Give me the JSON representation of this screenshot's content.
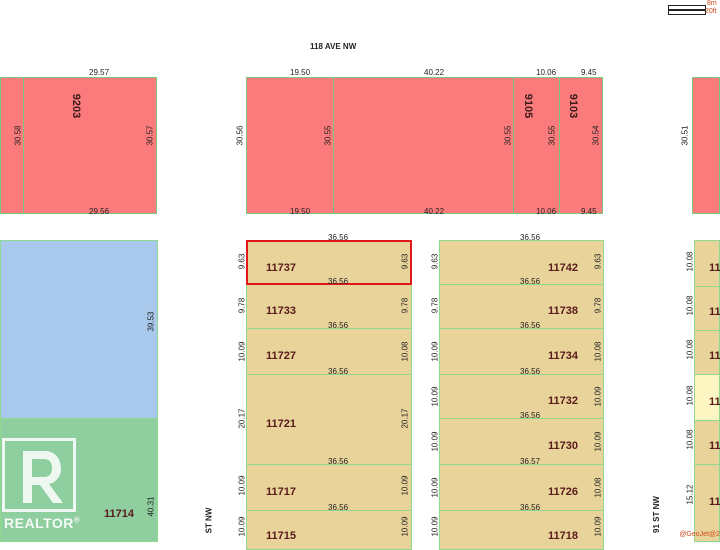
{
  "map": {
    "street_top": "118 AVE NW",
    "street_left": "ST NW",
    "street_right": "91 ST NW",
    "scale": {
      "metric": "8m",
      "imperial": "20ft"
    },
    "credit": "@GeoJet@2",
    "realtor": {
      "label": "REALTOR",
      "reg": "®"
    },
    "top_lots": {
      "left": {
        "number": "9203",
        "top_width": "29.57",
        "bottom_width": "29.56",
        "left_depth": "30.58",
        "right_depth": "30.57"
      },
      "middle_a": {
        "top_width": "19.50",
        "bottom_width": "19.50",
        "left_depth": "30.56",
        "right_depth": "30.55"
      },
      "middle_b": {
        "top_width": "40.22",
        "bottom_width": "40.22",
        "right_depth": "30.55"
      },
      "lot_9105": {
        "number": "9105",
        "top_width": "10.06",
        "bottom_width": "10.06",
        "right_depth": "30.55"
      },
      "lot_9103": {
        "number": "9103",
        "top_width": "9.45",
        "bottom_width": "9.45",
        "right_depth": "30.54"
      },
      "right_edge_depth": "30.51"
    },
    "left_big_lot": {
      "depth_upper": "39.53",
      "depth_lower": "40.31",
      "number": "11714"
    },
    "mid_column": [
      {
        "number": "11737",
        "width_top": "36.56",
        "width_bottom": "36.56",
        "left_depth": "9.63",
        "right_depth": "9.63",
        "selected": true
      },
      {
        "number": "11733",
        "width_bottom": "36.56",
        "left_depth": "9.78",
        "right_depth": "9.78"
      },
      {
        "number": "11727",
        "width_bottom": "36.56",
        "left_depth": "10.09",
        "right_depth": "10.08"
      },
      {
        "number": "11721",
        "width_bottom": "36.56",
        "left_depth": "20.17",
        "right_depth": "20.17"
      },
      {
        "number": "11717",
        "width_bottom": "36.56",
        "left_depth": "10.09",
        "right_depth": "10.09"
      },
      {
        "number": "11715",
        "left_depth": "10.09",
        "right_depth": "10.09"
      }
    ],
    "right_column": [
      {
        "number": "11742",
        "width_top": "36.56",
        "width_bottom": "36.56",
        "left_depth": "9.63",
        "right_depth": "9.63"
      },
      {
        "number": "11738",
        "width_bottom": "36.56",
        "left_depth": "9.78",
        "right_depth": "9.78"
      },
      {
        "number": "11734",
        "width_bottom": "36.56",
        "left_depth": "10.09",
        "right_depth": "10.08"
      },
      {
        "number": "11732",
        "width_bottom": "36.56",
        "left_depth": "10.09",
        "right_depth": "10.09"
      },
      {
        "number": "11730",
        "width_bottom": "36.57",
        "left_depth": "10.09",
        "right_depth": "10.09"
      },
      {
        "number": "11726",
        "width_bottom": "36.56",
        "left_depth": "10.09",
        "right_depth": "10.08"
      },
      {
        "number": "11718",
        "left_depth": "10.09",
        "right_depth": "10.09"
      }
    ],
    "far_right_column": [
      {
        "number": "11",
        "left_depth": "10.08"
      },
      {
        "number": "11",
        "left_depth": "10.08"
      },
      {
        "number": "11",
        "left_depth": "10.08"
      },
      {
        "number": "11",
        "left_depth": "10.08"
      },
      {
        "number": "11",
        "left_depth": "10.08"
      },
      {
        "number": "11",
        "left_depth": "15.12"
      }
    ],
    "colors": {
      "residential_red": "#fb7b7c",
      "residential_tan": "#e8d39a",
      "park_blue": "#a8c8ec",
      "park_green": "#8fce9f",
      "selected_border": "#e01818"
    }
  }
}
